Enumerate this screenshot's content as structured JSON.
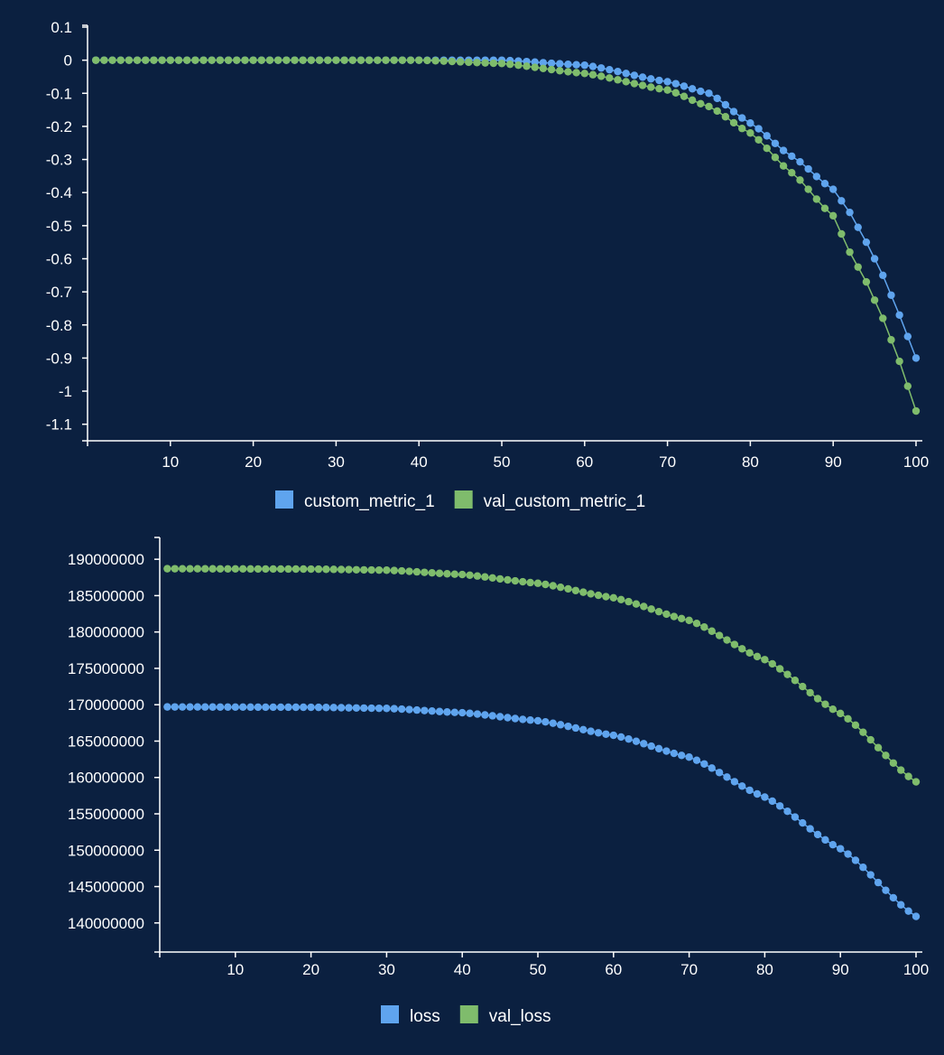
{
  "chart_data": [
    {
      "type": "line",
      "id": "metric",
      "x_start": 1,
      "x_end": 100,
      "xlim": [
        0,
        100
      ],
      "ylim": [
        -1.15,
        0.1
      ],
      "x_ticks": [
        10,
        20,
        30,
        40,
        50,
        60,
        70,
        80,
        90,
        100
      ],
      "y_ticks": [
        0.1,
        0,
        -0.1,
        -0.2,
        -0.3,
        -0.4,
        -0.5,
        -0.6,
        -0.7,
        -0.8,
        -0.9,
        -1,
        -1.1
      ],
      "y_tick_labels": [
        "0.1",
        "0",
        "-0.1",
        "-0.2",
        "-0.3",
        "-0.4",
        "-0.5",
        "-0.6",
        "-0.7",
        "-0.8",
        "-0.9",
        "-1",
        "-1.1"
      ],
      "x_tick_labels": [
        "10",
        "20",
        "30",
        "40",
        "50",
        "60",
        "70",
        "80",
        "90",
        "100"
      ],
      "grid": false,
      "legend_position": "bottom",
      "series": [
        {
          "name": "custom_metric_1",
          "color": "#5fa4ee",
          "anchors": [
            [
              1,
              0.0
            ],
            [
              50,
              0.0
            ],
            [
              60,
              -0.015
            ],
            [
              70,
              -0.065
            ],
            [
              75,
              -0.1
            ],
            [
              80,
              -0.19
            ],
            [
              85,
              -0.29
            ],
            [
              90,
              -0.39
            ],
            [
              92,
              -0.46
            ],
            [
              94,
              -0.55
            ],
            [
              96,
              -0.65
            ],
            [
              98,
              -0.77
            ],
            [
              100,
              -0.9
            ]
          ]
        },
        {
          "name": "val_custom_metric_1",
          "color": "#7fbc6c",
          "anchors": [
            [
              1,
              0.0
            ],
            [
              40,
              0.0
            ],
            [
              50,
              -0.01
            ],
            [
              60,
              -0.04
            ],
            [
              70,
              -0.09
            ],
            [
              75,
              -0.14
            ],
            [
              80,
              -0.22
            ],
            [
              85,
              -0.34
            ],
            [
              90,
              -0.47
            ],
            [
              92,
              -0.58
            ],
            [
              94,
              -0.67
            ],
            [
              96,
              -0.78
            ],
            [
              98,
              -0.91
            ],
            [
              100,
              -1.06
            ]
          ]
        }
      ]
    },
    {
      "type": "line",
      "id": "loss",
      "x_start": 1,
      "x_end": 100,
      "xlim": [
        0,
        100
      ],
      "ylim": [
        136000000,
        193000000
      ],
      "x_ticks": [
        10,
        20,
        30,
        40,
        50,
        60,
        70,
        80,
        90,
        100
      ],
      "y_ticks": [
        190000000,
        185000000,
        180000000,
        175000000,
        170000000,
        165000000,
        160000000,
        155000000,
        150000000,
        145000000,
        140000000
      ],
      "y_tick_labels": [
        "190000000",
        "185000000",
        "180000000",
        "175000000",
        "170000000",
        "165000000",
        "160000000",
        "155000000",
        "150000000",
        "145000000",
        "140000000"
      ],
      "x_tick_labels": [
        "10",
        "20",
        "30",
        "40",
        "50",
        "60",
        "70",
        "80",
        "90",
        "100"
      ],
      "grid": false,
      "legend_position": "bottom",
      "series": [
        {
          "name": "loss",
          "color": "#5fa4ee",
          "anchors": [
            [
              1,
              169700000
            ],
            [
              20,
              169650000
            ],
            [
              30,
              169500000
            ],
            [
              40,
              168900000
            ],
            [
              50,
              167800000
            ],
            [
              60,
              165800000
            ],
            [
              70,
              162800000
            ],
            [
              80,
              157300000
            ],
            [
              90,
              150200000
            ],
            [
              100,
              140900000
            ]
          ]
        },
        {
          "name": "val_loss",
          "color": "#7fbc6c",
          "anchors": [
            [
              1,
              188700000
            ],
            [
              20,
              188650000
            ],
            [
              30,
              188500000
            ],
            [
              40,
              187900000
            ],
            [
              50,
              186700000
            ],
            [
              60,
              184700000
            ],
            [
              70,
              181600000
            ],
            [
              80,
              176200000
            ],
            [
              90,
              168800000
            ],
            [
              100,
              159400000
            ]
          ]
        }
      ]
    }
  ]
}
